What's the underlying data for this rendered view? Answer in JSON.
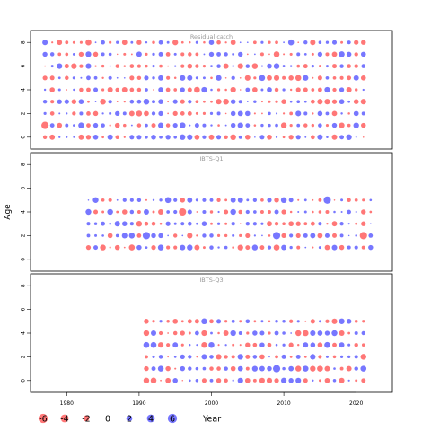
{
  "chart_data": {
    "type": "scatter",
    "ylabel": "Age",
    "xlabel": "Year",
    "xlim": [
      1975,
      2025
    ],
    "x_ticks": [
      1980,
      1990,
      2000,
      2010,
      2020
    ],
    "y_ticks": [
      0,
      2,
      4,
      6,
      8
    ],
    "ylim": [
      -1,
      9
    ],
    "colors": {
      "negative": "#ff5555",
      "positive": "#5555ff"
    },
    "panels": [
      {
        "title": "Residual catch",
        "years": [
          1977,
          2021
        ],
        "ages": [
          0,
          8
        ]
      },
      {
        "title": "IBTS-Q1",
        "years": [
          1983,
          2022
        ],
        "ages": [
          1,
          5
        ]
      },
      {
        "title": "IBTS-Q3",
        "years": [
          1991,
          2021
        ],
        "ages": [
          0,
          5
        ]
      }
    ],
    "legend": {
      "values": [
        "-6",
        "-4",
        "-2",
        "0",
        "2",
        "4",
        "6"
      ]
    }
  }
}
